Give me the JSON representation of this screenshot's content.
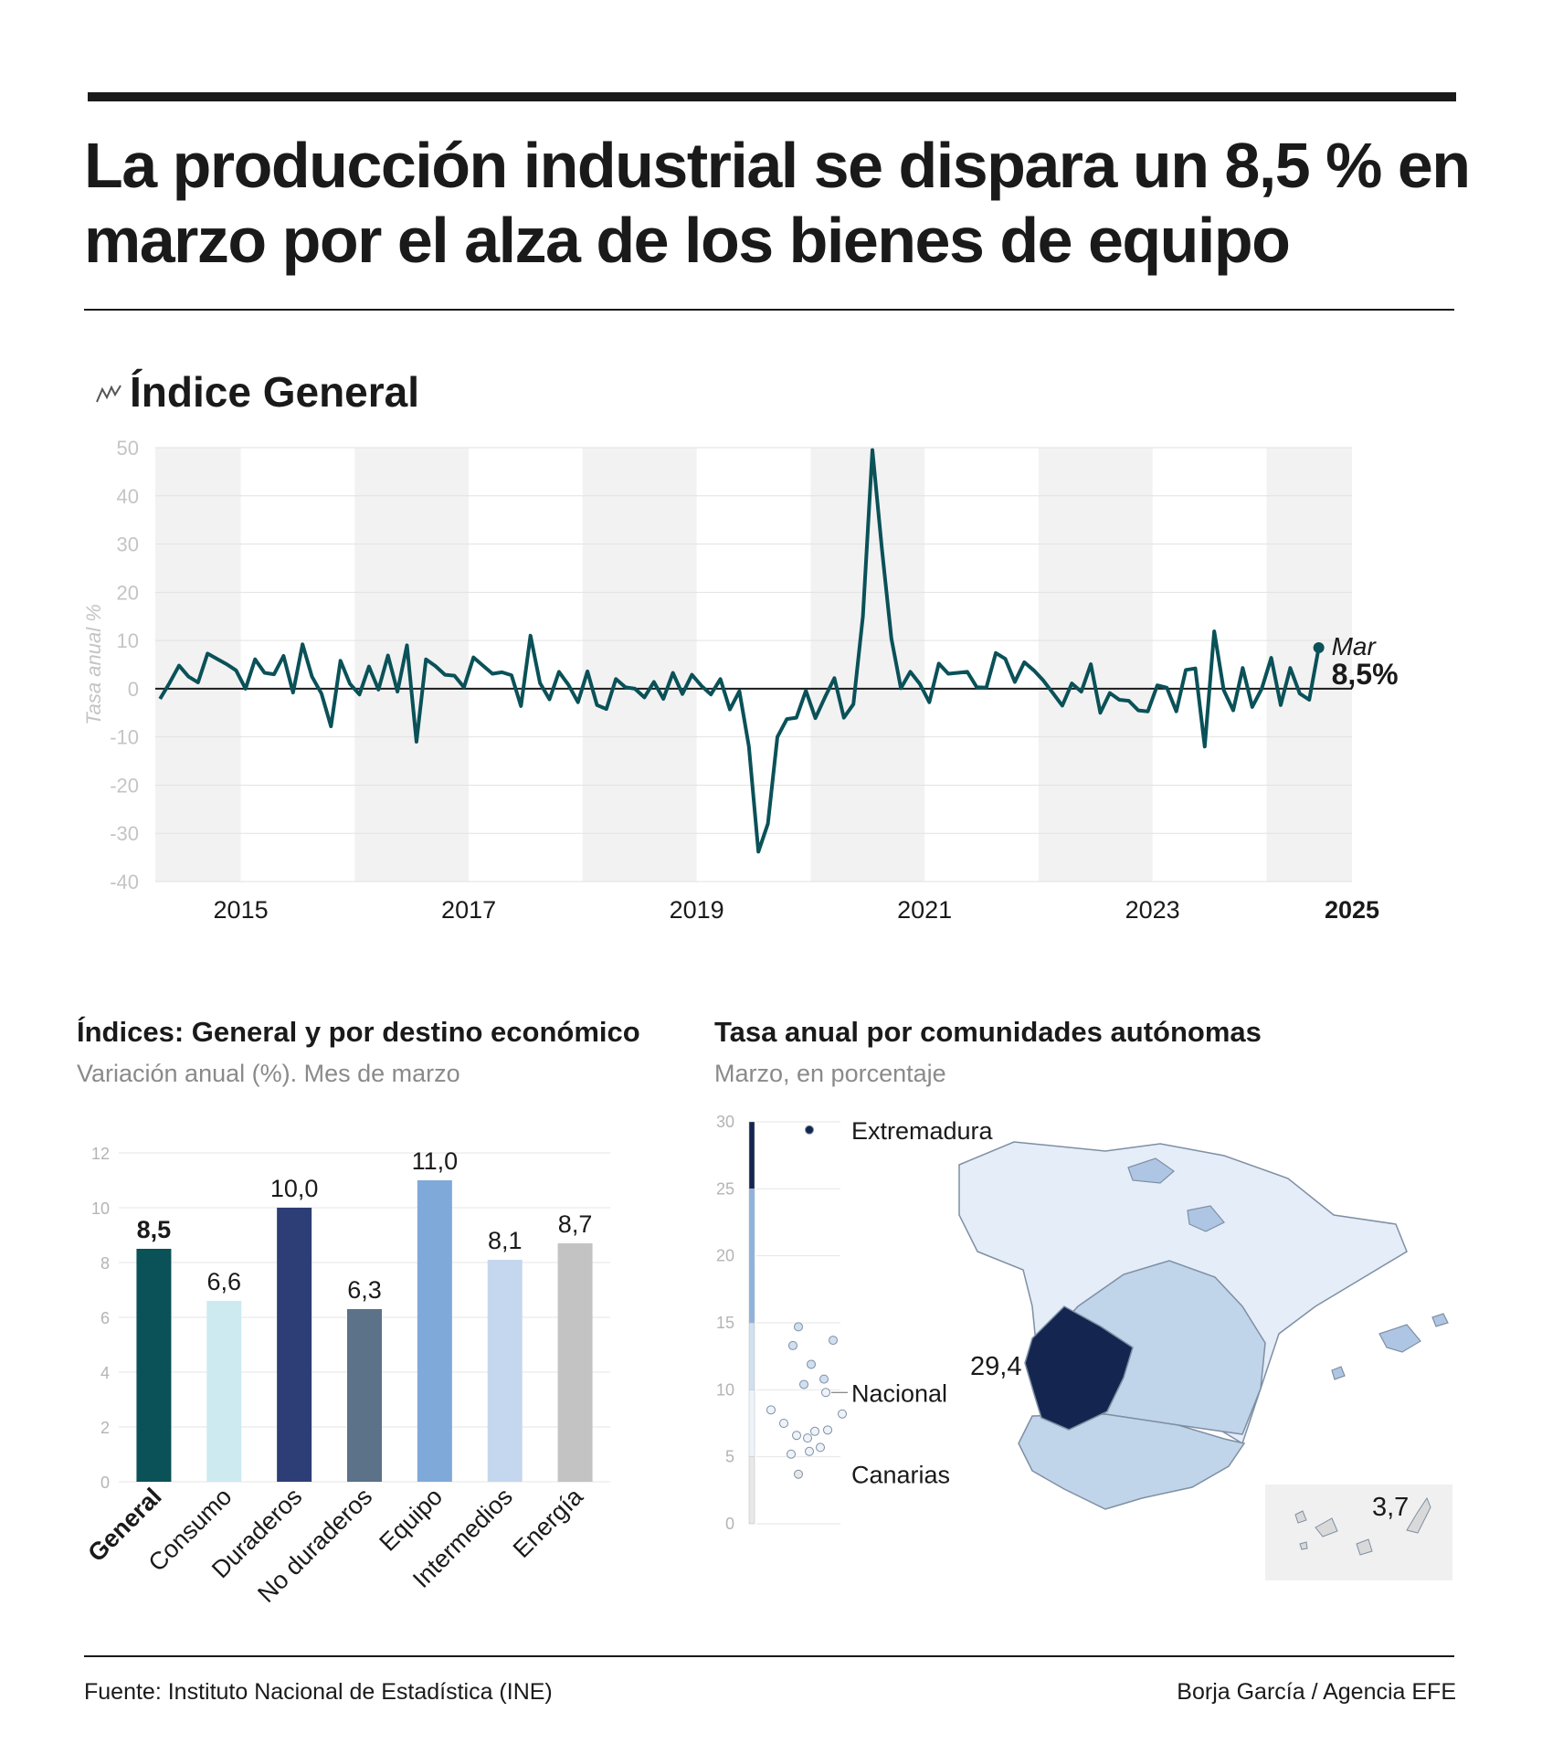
{
  "headline": "La producción industrial se dispara un 8,5 % en marzo por el alza de los bienes de equipo",
  "icons": {
    "section": "line-chart-icon"
  },
  "colors": {
    "line": "#0a5158",
    "zero_line": "#1a1a1a",
    "band": "#f2f2f2",
    "map_outline": "#7f8fa3"
  },
  "chart_data": [
    {
      "type": "line",
      "title": "Índice General",
      "ylabel": "Tasa anual %",
      "ylim": [
        -40,
        50
      ],
      "yticks": [
        "50",
        "40",
        "30",
        "20",
        "10",
        "0",
        "-10",
        "-20",
        "-30",
        "-40"
      ],
      "xticks": [
        {
          "label": "2015",
          "year": 2015
        },
        {
          "label": "2017",
          "year": 2017
        },
        {
          "label": "2019",
          "year": 2019
        },
        {
          "label": "2021",
          "year": 2021
        },
        {
          "label": "2023",
          "year": 2023
        },
        {
          "label": "2025",
          "year": 2025,
          "bold": true
        }
      ],
      "x_start": "2014-10",
      "x_end": "2025-03",
      "values": [
        -2.1,
        1.2,
        4.8,
        2.5,
        1.3,
        7.3,
        6.2,
        5.1,
        3.8,
        0.0,
        6.1,
        3.3,
        3.0,
        6.8,
        -0.8,
        9.2,
        2.5,
        -1.0,
        -7.8,
        5.8,
        1.0,
        -1.2,
        4.6,
        -0.2,
        6.9,
        -0.6,
        9.0,
        -11.0,
        6.1,
        4.7,
        2.9,
        2.7,
        0.3,
        6.5,
        4.8,
        3.1,
        3.4,
        2.8,
        -3.6,
        11.0,
        1.2,
        -2.2,
        3.5,
        0.8,
        -2.8,
        3.6,
        -3.4,
        -4.2,
        2.0,
        0.3,
        0.0,
        -1.8,
        1.4,
        -2.1,
        3.3,
        -1.1,
        2.9,
        0.6,
        -1.2,
        2.0,
        -4.3,
        -0.5,
        -12.0,
        -33.8,
        -28.0,
        -10.0,
        -6.3,
        -6.0,
        -0.4,
        -6.1,
        -1.8,
        2.2,
        -6.0,
        -3.2,
        15.0,
        49.5,
        29.0,
        10.4,
        0.1,
        3.5,
        1.0,
        -2.8,
        5.2,
        3.1,
        3.3,
        3.5,
        0.3,
        0.2,
        7.4,
        6.2,
        1.4,
        5.5,
        3.8,
        1.7,
        -0.9,
        -3.5,
        1.1,
        -0.6,
        5.1,
        -5.0,
        -0.9,
        -2.3,
        -2.5,
        -4.5,
        -4.7,
        0.7,
        0.2,
        -4.7,
        3.9,
        4.2,
        -12.0,
        11.9,
        -0.3,
        -4.5,
        4.3,
        -3.8,
        0.0,
        6.4,
        -3.4,
        4.3,
        -1.0,
        -2.3,
        8.5
      ],
      "last_point": {
        "label": "Mar",
        "value_label": "8,5%"
      }
    },
    {
      "type": "bar",
      "title": "Índices: General y por destino económico",
      "subtitle": "Variación anual (%). Mes de marzo",
      "ylim": [
        0,
        12
      ],
      "yticks": [
        "0",
        "2",
        "4",
        "6",
        "8",
        "10",
        "12"
      ],
      "categories": [
        "General",
        "Consumo",
        "Duraderos",
        "No duraderos",
        "Equipo",
        "Intermedios",
        "Energía"
      ],
      "values": [
        8.5,
        6.6,
        10.0,
        6.3,
        11.0,
        8.1,
        8.7
      ],
      "value_labels": [
        "8,5",
        "6,6",
        "10,0",
        "6,3",
        "11,0",
        "8,1",
        "8,7"
      ],
      "colors": [
        "#0a5158",
        "#cdeaf0",
        "#2d3e76",
        "#5b7289",
        "#7fa9d9",
        "#c5d7ee",
        "#c3c3c3"
      ],
      "highlight": "General"
    },
    {
      "type": "scatter",
      "title": "Tasa anual por comunidades autónomas",
      "subtitle": "Marzo, en porcentaje",
      "ylim": [
        0,
        30
      ],
      "yticks": [
        "30",
        "25",
        "20",
        "15",
        "10",
        "5",
        "0"
      ],
      "scale_segments": [
        {
          "from": 0,
          "to": 5,
          "color": "#e8e8e8"
        },
        {
          "from": 5,
          "to": 10,
          "color": "#eef3fa"
        },
        {
          "from": 10,
          "to": 15,
          "color": "#d0e0f0"
        },
        {
          "from": 15,
          "to": 25,
          "color": "#8fb2dc"
        },
        {
          "from": 25,
          "to": 30,
          "color": "#142650"
        }
      ],
      "points": [
        29.4,
        14.7,
        13.7,
        13.3,
        11.9,
        10.8,
        10.4,
        9.8,
        8.5,
        8.2,
        7.5,
        7.0,
        6.9,
        6.6,
        6.4,
        5.7,
        5.4,
        5.2,
        3.7
      ],
      "annotations": [
        {
          "label": "Extremadura",
          "value": 29.4
        },
        {
          "label": "Nacional",
          "value": 9.8
        },
        {
          "label": "Canarias",
          "value": 3.7
        }
      ],
      "map_labels": {
        "extremadura": "29,4",
        "canarias": "3,7"
      },
      "map_colors": {
        "extremadura": "#142650",
        "center_south": "#c0d4ea",
        "north_east": "#e4edf8",
        "small_regions": "#aec6e4",
        "canarias": "#d9d9d9",
        "canarias_bg": "#f0f0f0"
      }
    }
  ],
  "footer": {
    "source": "Fuente: Instituto Nacional de Estadística (INE)",
    "credit": "Borja García / Agencia EFE"
  }
}
